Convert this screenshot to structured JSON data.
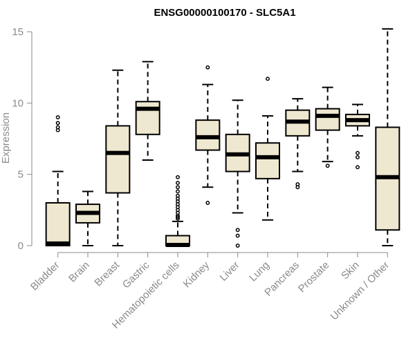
{
  "chart_data": {
    "type": "boxplot",
    "title": "ENSG00000100170 - SLC5A1",
    "xlabel": "",
    "ylabel": "Expression",
    "ylim": [
      0,
      15.5
    ],
    "yticks": [
      0,
      5,
      10,
      15
    ],
    "colors": {
      "box_fill": "#efe8d0",
      "stroke": "#000000",
      "axis": "#8a8a8a"
    },
    "categories": [
      "Bladder",
      "Brain",
      "Breast",
      "Gastric",
      "Hematopoietic cells",
      "Kidney",
      "Liver",
      "Lung",
      "Pancreas",
      "Prostate",
      "Skin",
      "Unknown / Other"
    ],
    "boxes": [
      {
        "name": "Bladder",
        "min": 0,
        "q1": 0,
        "median": 0.15,
        "q3": 3.0,
        "max": 5.2,
        "outliers": [
          8.1,
          8.3,
          8.6,
          9.0
        ]
      },
      {
        "name": "Brain",
        "min": 0,
        "q1": 1.6,
        "median": 2.3,
        "q3": 2.9,
        "max": 3.8,
        "outliers": []
      },
      {
        "name": "Breast",
        "min": 0,
        "q1": 3.7,
        "median": 6.5,
        "q3": 8.4,
        "max": 12.3,
        "outliers": []
      },
      {
        "name": "Gastric",
        "min": 6.0,
        "q1": 7.8,
        "median": 9.6,
        "q3": 10.1,
        "max": 12.9,
        "outliers": []
      },
      {
        "name": "Hematopoietic cells",
        "min": 0,
        "q1": 0,
        "median": 0.05,
        "q3": 0.7,
        "max": 1.7,
        "outliers": [
          1.9,
          2.0,
          2.1,
          2.3,
          2.5,
          2.7,
          2.9,
          3.1,
          3.3,
          3.5,
          3.8,
          4.1,
          4.4,
          4.8
        ]
      },
      {
        "name": "Kidney",
        "min": 4.1,
        "q1": 6.7,
        "median": 7.6,
        "q3": 8.8,
        "max": 11.3,
        "outliers": [
          3.0,
          12.5
        ]
      },
      {
        "name": "Liver",
        "min": 2.3,
        "q1": 5.2,
        "median": 6.4,
        "q3": 7.8,
        "max": 10.2,
        "outliers": [
          0,
          0.7,
          1.1
        ]
      },
      {
        "name": "Lung",
        "min": 1.8,
        "q1": 4.7,
        "median": 6.2,
        "q3": 7.2,
        "max": 9.1,
        "outliers": [
          11.7
        ]
      },
      {
        "name": "Pancreas",
        "min": 5.2,
        "q1": 7.7,
        "median": 8.7,
        "q3": 9.5,
        "max": 10.3,
        "outliers": [
          4.1,
          4.3
        ]
      },
      {
        "name": "Prostate",
        "min": 5.9,
        "q1": 8.1,
        "median": 9.1,
        "q3": 9.6,
        "max": 11.1,
        "outliers": [
          5.6
        ]
      },
      {
        "name": "Skin",
        "min": 7.7,
        "q1": 8.4,
        "median": 8.8,
        "q3": 9.2,
        "max": 9.9,
        "outliers": [
          6.2,
          6.5,
          5.5
        ]
      },
      {
        "name": "Unknown / Other",
        "min": 0,
        "q1": 1.1,
        "median": 4.8,
        "q3": 8.3,
        "max": 15.2,
        "outliers": []
      }
    ]
  }
}
